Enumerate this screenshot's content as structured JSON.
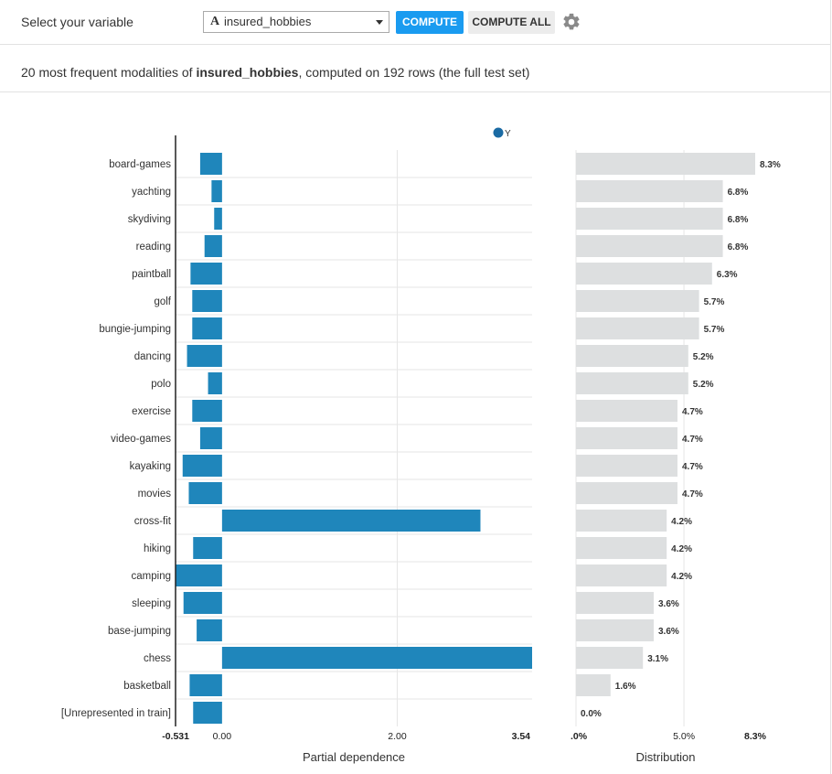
{
  "toolbar": {
    "label": "Select your variable",
    "select_value": "insured_hobbies",
    "select_type_icon": "A",
    "compute_label": "COMPUTE",
    "compute_all_label": "COMPUTE ALL",
    "settings_icon": "gear-icon"
  },
  "subtitle": {
    "prefix": "20 most frequent modalities of ",
    "variable": "insured_hobbies",
    "suffix": ", computed on 192 rows (the full test set)"
  },
  "colors": {
    "accent": "#1a9bf0",
    "pd_bar": "#1f86bb",
    "dist_bar": "#dddfe0"
  },
  "chart_data": [
    {
      "type": "bar",
      "orientation": "horizontal",
      "xlabel": "Partial dependence",
      "legend": {
        "entries": [
          "Y"
        ],
        "placement": "top"
      },
      "xlim": [
        -0.531,
        3.54
      ],
      "xticks": [
        {
          "value": -0.531,
          "label": "-0.531"
        },
        {
          "value": 0,
          "label": "0.00"
        },
        {
          "value": 2,
          "label": "2.00"
        },
        {
          "value": 3.54,
          "label": "3.54"
        }
      ],
      "grid": true,
      "categories": [
        "board-games",
        "yachting",
        "skydiving",
        "reading",
        "paintball",
        "golf",
        "bungie-jumping",
        "dancing",
        "polo",
        "exercise",
        "video-games",
        "kayaking",
        "movies",
        "cross-fit",
        "hiking",
        "camping",
        "sleeping",
        "base-jumping",
        "chess",
        "basketball",
        "[Unrepresented in train]"
      ],
      "series": [
        {
          "name": "Y",
          "values": [
            -0.25,
            -0.12,
            -0.09,
            -0.2,
            -0.36,
            -0.34,
            -0.34,
            -0.4,
            -0.16,
            -0.34,
            -0.25,
            -0.45,
            -0.38,
            2.95,
            -0.33,
            -0.531,
            -0.44,
            -0.29,
            3.54,
            -0.37,
            -0.33
          ]
        }
      ]
    },
    {
      "type": "bar",
      "orientation": "horizontal",
      "xlabel": "Distribution",
      "xlim": [
        0,
        8.3
      ],
      "xticks": [
        {
          "value": 0,
          "label": ".0%"
        },
        {
          "value": 5,
          "label": "5.0%"
        },
        {
          "value": 8.3,
          "label": "8.3%"
        }
      ],
      "grid": true,
      "categories": [
        "board-games",
        "yachting",
        "skydiving",
        "reading",
        "paintball",
        "golf",
        "bungie-jumping",
        "dancing",
        "polo",
        "exercise",
        "video-games",
        "kayaking",
        "movies",
        "cross-fit",
        "hiking",
        "camping",
        "sleeping",
        "base-jumping",
        "chess",
        "basketball",
        "[Unrepresented in train]"
      ],
      "values": [
        8.3,
        6.8,
        6.8,
        6.8,
        6.3,
        5.7,
        5.7,
        5.2,
        5.2,
        4.7,
        4.7,
        4.7,
        4.7,
        4.2,
        4.2,
        4.2,
        3.6,
        3.6,
        3.1,
        1.6,
        0.0
      ],
      "value_labels": [
        "8.3%",
        "6.8%",
        "6.8%",
        "6.8%",
        "6.3%",
        "5.7%",
        "5.7%",
        "5.2%",
        "5.2%",
        "4.7%",
        "4.7%",
        "4.7%",
        "4.7%",
        "4.2%",
        "4.2%",
        "4.2%",
        "3.6%",
        "3.6%",
        "3.1%",
        "1.6%",
        "0.0%"
      ]
    }
  ]
}
